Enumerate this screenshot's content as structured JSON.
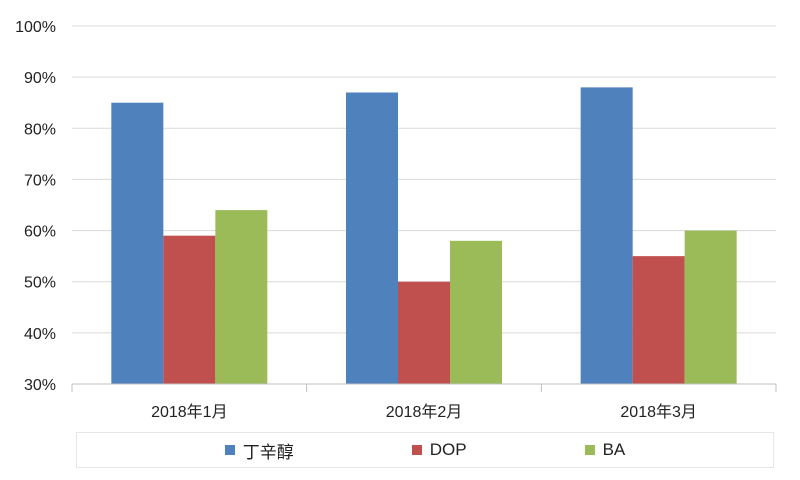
{
  "chart_data": {
    "type": "bar",
    "categories": [
      "2018年1月",
      "2018年2月",
      "2018年3月"
    ],
    "series": [
      {
        "name": "丁辛醇",
        "color": "#4f81bd",
        "values": [
          85,
          87,
          88
        ]
      },
      {
        "name": "DOP",
        "color": "#c0504d",
        "values": [
          59,
          50,
          55
        ]
      },
      {
        "name": "BA",
        "color": "#9bbb59",
        "values": [
          64,
          58,
          60
        ]
      }
    ],
    "ylim": [
      30,
      100
    ],
    "y_ticks": [
      30,
      40,
      50,
      60,
      70,
      80,
      90,
      100
    ],
    "y_tick_labels": [
      "30%",
      "40%",
      "50%",
      "60%",
      "70%",
      "80%",
      "90%",
      "100%"
    ],
    "y_unit": "percent",
    "grid": true,
    "legend_position": "bottom"
  }
}
